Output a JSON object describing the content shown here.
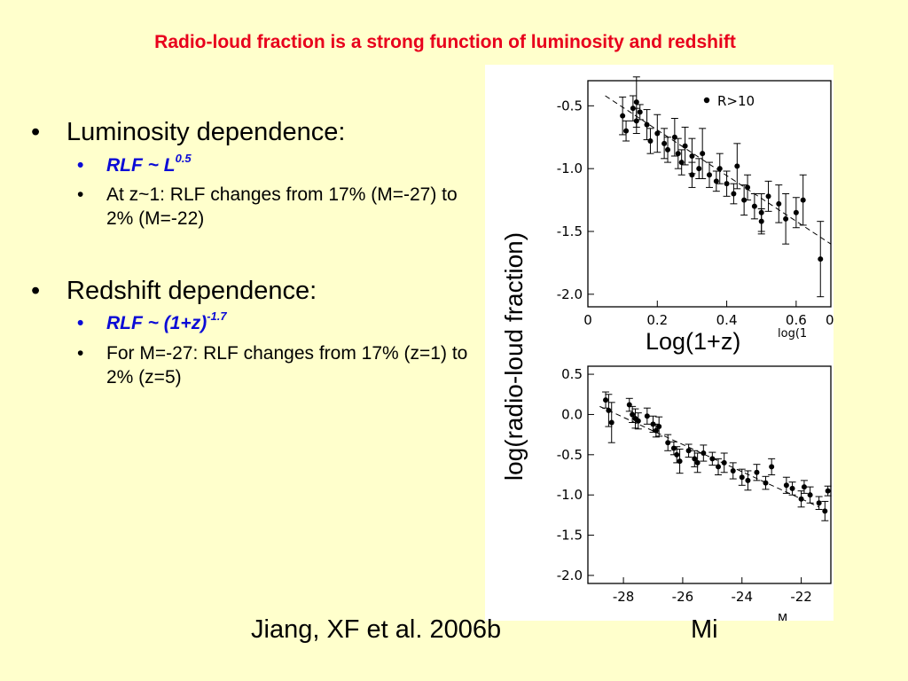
{
  "slide": {
    "title": "Radio-loud fraction is a strong function of luminosity and redshift",
    "bullets": [
      {
        "heading": "Luminosity dependence:",
        "sub": [
          {
            "text": "RLF ~ L",
            "sup": "0.5",
            "emphasis": true
          },
          {
            "text": "At z~1: RLF changes from 17% (M=-27) to 2% (M=-22)",
            "emphasis": false
          }
        ]
      },
      {
        "heading": "Redshift dependence:",
        "sub": [
          {
            "text": "RLF ~ (1+z)",
            "sup": "-1.7",
            "emphasis": true
          },
          {
            "text": "For M=-27: RLF changes from 17% (z=1) to 2% (z=5)",
            "emphasis": false
          }
        ]
      }
    ],
    "bullet_char": "•",
    "citation": "Jiang, XF et al. 2006b",
    "colors": {
      "background": "#ffffcc",
      "title": "#e8001c",
      "emphasis": "#0b0bd6"
    }
  },
  "figure": {
    "ylabel": "log(radio-loud fraction)",
    "xlabel_top": "Log(1+z)",
    "xlabel_bottom": "Mi",
    "clipped_top_axis_label": "log(1",
    "clipped_bottom_axis_label": "M"
  },
  "chart_data": [
    {
      "type": "scatter",
      "title": "",
      "xlabel": "Log(1+z)",
      "ylabel": "log(radio-loud fraction)",
      "xlim": [
        0,
        0.7
      ],
      "ylim": [
        -2.1,
        -0.3
      ],
      "xticks": [
        "0",
        "0.2",
        "0.4",
        "0.6",
        "0"
      ],
      "yticks": [
        "-0.5",
        "-1.0",
        "-1.5",
        "-2.0"
      ],
      "legend": {
        "label": "R>10",
        "position": "top-right"
      },
      "fit_line": {
        "slope": -1.7,
        "style": "dashed",
        "x": [
          0.05,
          0.7
        ],
        "y": [
          -0.42,
          -1.6
        ]
      },
      "points": [
        {
          "x": 0.1,
          "y": -0.58,
          "err": 0.15
        },
        {
          "x": 0.11,
          "y": -0.7,
          "err": 0.08
        },
        {
          "x": 0.13,
          "y": -0.52,
          "err": 0.1
        },
        {
          "x": 0.14,
          "y": -0.47,
          "err": 0.2
        },
        {
          "x": 0.14,
          "y": -0.62,
          "err": 0.1
        },
        {
          "x": 0.15,
          "y": -0.55,
          "err": 0.06
        },
        {
          "x": 0.17,
          "y": -0.65,
          "err": 0.12
        },
        {
          "x": 0.18,
          "y": -0.78,
          "err": 0.1
        },
        {
          "x": 0.2,
          "y": -0.72,
          "err": 0.15
        },
        {
          "x": 0.22,
          "y": -0.8,
          "err": 0.12
        },
        {
          "x": 0.23,
          "y": -0.85,
          "err": 0.1
        },
        {
          "x": 0.25,
          "y": -0.75,
          "err": 0.15
        },
        {
          "x": 0.26,
          "y": -0.88,
          "err": 0.12
        },
        {
          "x": 0.27,
          "y": -0.95,
          "err": 0.1
        },
        {
          "x": 0.28,
          "y": -0.82,
          "err": 0.15
        },
        {
          "x": 0.3,
          "y": -0.9,
          "err": 0.14
        },
        {
          "x": 0.3,
          "y": -1.05,
          "err": 0.1
        },
        {
          "x": 0.32,
          "y": -1.0,
          "err": 0.08
        },
        {
          "x": 0.33,
          "y": -0.88,
          "err": 0.2
        },
        {
          "x": 0.35,
          "y": -1.05,
          "err": 0.1
        },
        {
          "x": 0.37,
          "y": -1.1,
          "err": 0.08
        },
        {
          "x": 0.38,
          "y": -1.0,
          "err": 0.12
        },
        {
          "x": 0.4,
          "y": -1.12,
          "err": 0.1
        },
        {
          "x": 0.42,
          "y": -1.2,
          "err": 0.08
        },
        {
          "x": 0.43,
          "y": -0.98,
          "err": 0.18
        },
        {
          "x": 0.45,
          "y": -1.25,
          "err": 0.12
        },
        {
          "x": 0.46,
          "y": -1.15,
          "err": 0.1
        },
        {
          "x": 0.48,
          "y": -1.3,
          "err": 0.1
        },
        {
          "x": 0.5,
          "y": -1.35,
          "err": 0.15
        },
        {
          "x": 0.5,
          "y": -1.42,
          "err": 0.1
        },
        {
          "x": 0.52,
          "y": -1.22,
          "err": 0.12
        },
        {
          "x": 0.55,
          "y": -1.28,
          "err": 0.15
        },
        {
          "x": 0.57,
          "y": -1.4,
          "err": 0.2
        },
        {
          "x": 0.6,
          "y": -1.35,
          "err": 0.12
        },
        {
          "x": 0.62,
          "y": -1.25,
          "err": 0.2
        },
        {
          "x": 0.67,
          "y": -1.72,
          "err": 0.3
        }
      ]
    },
    {
      "type": "scatter",
      "title": "",
      "xlabel": "Mi",
      "ylabel": "log(radio-loud fraction)",
      "xlim": [
        -29.2,
        -21.0
      ],
      "ylim": [
        -2.1,
        0.6
      ],
      "xticks": [
        "-28",
        "-26",
        "-24",
        "-22"
      ],
      "yticks": [
        "0.5",
        "0.0",
        "-0.5",
        "-1.0",
        "-1.5",
        "-2.0"
      ],
      "fit_line": {
        "slope": -0.2,
        "style": "dashed",
        "x": [
          -28.8,
          -21.4
        ],
        "y": [
          0.1,
          -1.15
        ]
      },
      "points": [
        {
          "x": -28.6,
          "y": 0.18,
          "err": 0.1
        },
        {
          "x": -28.5,
          "y": 0.05,
          "err": 0.2
        },
        {
          "x": -28.4,
          "y": -0.1,
          "err": 0.25
        },
        {
          "x": -27.8,
          "y": 0.12,
          "err": 0.08
        },
        {
          "x": -27.7,
          "y": 0.0,
          "err": 0.1
        },
        {
          "x": -27.6,
          "y": -0.05,
          "err": 0.12
        },
        {
          "x": -27.5,
          "y": -0.08,
          "err": 0.1
        },
        {
          "x": -27.2,
          "y": -0.02,
          "err": 0.1
        },
        {
          "x": -27.0,
          "y": -0.12,
          "err": 0.1
        },
        {
          "x": -26.9,
          "y": -0.2,
          "err": 0.08
        },
        {
          "x": -26.8,
          "y": -0.15,
          "err": 0.12
        },
        {
          "x": -26.5,
          "y": -0.35,
          "err": 0.1
        },
        {
          "x": -26.3,
          "y": -0.42,
          "err": 0.08
        },
        {
          "x": -26.2,
          "y": -0.5,
          "err": 0.1
        },
        {
          "x": -26.1,
          "y": -0.58,
          "err": 0.15
        },
        {
          "x": -25.8,
          "y": -0.45,
          "err": 0.08
        },
        {
          "x": -25.6,
          "y": -0.55,
          "err": 0.1
        },
        {
          "x": -25.5,
          "y": -0.6,
          "err": 0.12
        },
        {
          "x": -25.3,
          "y": -0.48,
          "err": 0.1
        },
        {
          "x": -25.0,
          "y": -0.55,
          "err": 0.08
        },
        {
          "x": -24.8,
          "y": -0.65,
          "err": 0.1
        },
        {
          "x": -24.6,
          "y": -0.6,
          "err": 0.12
        },
        {
          "x": -24.3,
          "y": -0.7,
          "err": 0.1
        },
        {
          "x": -24.0,
          "y": -0.78,
          "err": 0.1
        },
        {
          "x": -23.8,
          "y": -0.82,
          "err": 0.12
        },
        {
          "x": -23.5,
          "y": -0.72,
          "err": 0.1
        },
        {
          "x": -23.2,
          "y": -0.85,
          "err": 0.08
        },
        {
          "x": -23.0,
          "y": -0.65,
          "err": 0.1
        },
        {
          "x": -22.5,
          "y": -0.88,
          "err": 0.1
        },
        {
          "x": -22.3,
          "y": -0.92,
          "err": 0.08
        },
        {
          "x": -22.0,
          "y": -1.05,
          "err": 0.1
        },
        {
          "x": -21.9,
          "y": -0.9,
          "err": 0.08
        },
        {
          "x": -21.7,
          "y": -1.0,
          "err": 0.1
        },
        {
          "x": -21.4,
          "y": -1.1,
          "err": 0.08
        },
        {
          "x": -21.2,
          "y": -1.2,
          "err": 0.12
        },
        {
          "x": -21.1,
          "y": -0.95,
          "err": 0.06
        }
      ]
    }
  ]
}
